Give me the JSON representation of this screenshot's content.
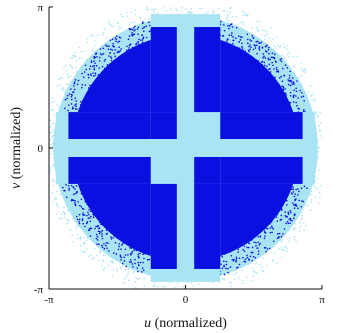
{
  "chart_data": {
    "type": "scatter",
    "title": "",
    "xlabel_var": "u",
    "xlabel_rest": " (normalized)",
    "ylabel_var": "v",
    "ylabel_rest": " (normalized)",
    "xlim": [
      -3.14159,
      3.14159
    ],
    "ylim": [
      -3.14159,
      3.14159
    ],
    "x_ticks": [
      {
        "value": -3.14159,
        "label": "-π"
      },
      {
        "value": 0,
        "label": "0"
      },
      {
        "value": 3.14159,
        "label": "π"
      }
    ],
    "y_ticks": [
      {
        "value": -3.14159,
        "label": "-π"
      },
      {
        "value": 0,
        "label": "0"
      },
      {
        "value": 3.14159,
        "label": "π"
      }
    ],
    "grid": false,
    "legend": "none",
    "series": [
      {
        "color": "#a9e4f5",
        "region": "full disk of samples, radius about 3.14",
        "radius": 3.14
      },
      {
        "color": "#0a10e0",
        "region": "inner disk of samples (radius about 2.75), minus the cross bands",
        "radius": 2.75
      }
    ],
    "cross_bands": {
      "dark_rows_v": [
        [
          0.2,
          0.8
        ],
        [
          -0.8,
          -0.2
        ]
      ],
      "dark_cols_u": [
        [
          -0.8,
          -0.2
        ],
        [
          0.2,
          0.8
        ]
      ],
      "light_gaps": [
        [
          -0.2,
          0.2
        ]
      ],
      "inner_squares": [
        {
          "u": [
            -0.8,
            -0.2
          ],
          "v": [
            0.2,
            0.8
          ],
          "color": "#0a10e0"
        },
        {
          "u": [
            0.2,
            0.8
          ],
          "v": [
            -0.8,
            -0.2
          ],
          "color": "#0a10e0"
        }
      ]
    },
    "colors": {
      "dark": "#0a10e0",
      "light": "#a9e4f5",
      "axis": "#111111"
    }
  }
}
